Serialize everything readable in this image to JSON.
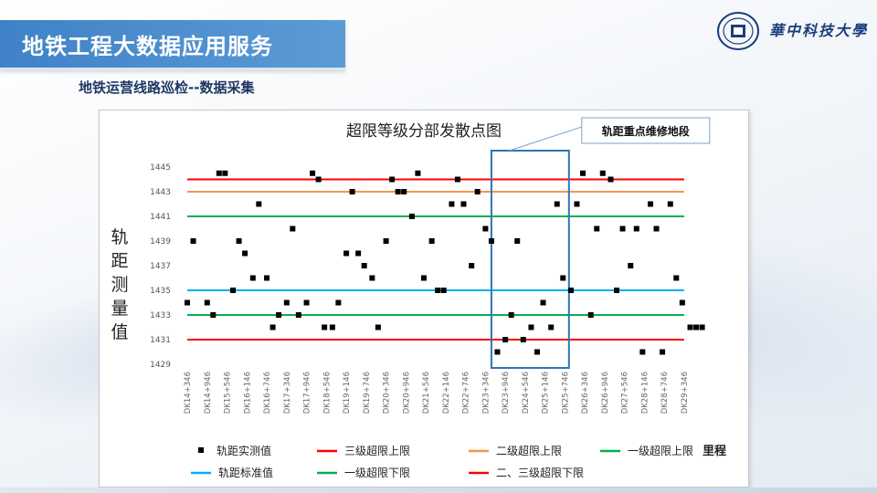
{
  "slide": {
    "title": "地铁工程大数据应用服务",
    "subtitle": "地铁运营线路巡检--数据采集",
    "university": "華中科技大學"
  },
  "colors": {
    "banner": "#3f82c7",
    "red": "#ff0000",
    "orange": "#f79646",
    "green": "#00b050",
    "blue": "#00b0f0",
    "box": "#2e75b6"
  },
  "chart_data": {
    "type": "scatter",
    "title": "超限等级分部发散点图",
    "ylabel": "轨距测量值",
    "xlabel": "里程",
    "ylim": [
      1429,
      1445
    ],
    "yticks": [
      1429,
      1431,
      1433,
      1435,
      1437,
      1439,
      1441,
      1443,
      1445
    ],
    "xticks": [
      "DK14+346",
      "DK14+946",
      "DK15+546",
      "DK16+146",
      "DK16+746",
      "DK17+346",
      "DK17+946",
      "DK18+546",
      "DK19+146",
      "DK19+746",
      "DK20+346",
      "DK20+946",
      "DK21+546",
      "DK22+146",
      "DK22+746",
      "DK23+346",
      "DK23+946",
      "DK24+546",
      "DK25+146",
      "DK25+746",
      "DK26+346",
      "DK26+946",
      "DK27+546",
      "DK28+146",
      "DK28+746",
      "DK29+346"
    ],
    "annotation": "轨距重点维修地段",
    "highlight_range": [
      15.3,
      19.2
    ],
    "series": [
      {
        "name": "轨距实测值",
        "marker": "square",
        "color": "#000000",
        "x": [
          0,
          0.3,
          1,
          1.3,
          1.6,
          1.9,
          2.3,
          2.6,
          2.9,
          3.3,
          3.6,
          4,
          4.3,
          4.6,
          5,
          5.3,
          5.6,
          6,
          6.3,
          6.6,
          6.9,
          7.3,
          7.6,
          8,
          8.3,
          8.6,
          8.9,
          9.3,
          9.6,
          10,
          10.3,
          10.6,
          10.9,
          11.3,
          11.6,
          11.9,
          12.3,
          12.6,
          12.9,
          13.3,
          13.6,
          13.9,
          14.3,
          14.6,
          15,
          15.3,
          15.6,
          16,
          16.3,
          16.6,
          16.9,
          17.3,
          17.6,
          17.9,
          18.3,
          18.6,
          18.9,
          19.3,
          19.6,
          19.9,
          20.3,
          20.6,
          20.9,
          21.3,
          21.6,
          21.9,
          22.3,
          22.6,
          22.9,
          23.3,
          23.6,
          23.9,
          24.3,
          24.6,
          24.9,
          25.3,
          25.6,
          25.9
        ],
        "y": [
          1434,
          1439,
          1434,
          1433,
          1444.5,
          1444.5,
          1435,
          1439,
          1438,
          1436,
          1442,
          1436,
          1432,
          1433,
          1434,
          1440,
          1433,
          1434,
          1444.5,
          1444,
          1432,
          1432,
          1434,
          1438,
          1443,
          1438,
          1437,
          1436,
          1432,
          1439,
          1444,
          1443,
          1443,
          1441,
          1444.5,
          1436,
          1439,
          1435,
          1435,
          1442,
          1444,
          1442,
          1437,
          1443,
          1440,
          1439,
          1430,
          1431,
          1433,
          1439,
          1431,
          1432,
          1430,
          1434,
          1432,
          1442,
          1436,
          1435,
          1442,
          1444.5,
          1433,
          1440,
          1444.5,
          1444,
          1435,
          1440,
          1437,
          1440,
          1430,
          1442,
          1440,
          1430,
          1442,
          1436,
          1434,
          1432,
          1432,
          1432
        ]
      }
    ],
    "reference_lines": [
      {
        "name": "三级超限上限",
        "y": 1444,
        "color": "#ff0000"
      },
      {
        "name": "二级超限上限",
        "y": 1443,
        "color": "#f79646"
      },
      {
        "name": "一级超限上限",
        "y": 1441,
        "color": "#00b050"
      },
      {
        "name": "轨距标准值",
        "y": 1435,
        "color": "#00b0f0"
      },
      {
        "name": "一级超限下限",
        "y": 1433,
        "color": "#00b050"
      },
      {
        "name": "二、三级超限下限",
        "y": 1431,
        "color": "#ff0000"
      }
    ],
    "legend_position": "bottom"
  }
}
